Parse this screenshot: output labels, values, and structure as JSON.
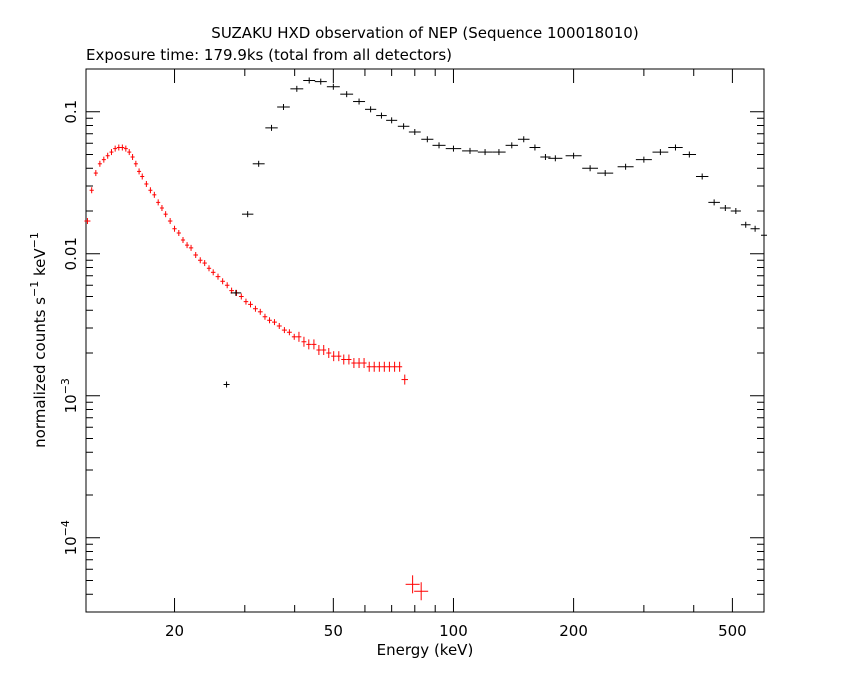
{
  "chart_data": {
    "type": "scatter",
    "title": "SUZAKU HXD observation of NEP (Sequence 100018010)",
    "subtitle": "Exposure time: 179.9ks (total from all detectors)",
    "xlabel": "Energy (keV)",
    "ylabel": "normalized counts s^-1 keV^-1",
    "xscale": "log",
    "yscale": "log",
    "xlim": [
      12,
      600
    ],
    "ylim": [
      3e-05,
      0.2
    ],
    "grid": false,
    "legend": "none",
    "xticks": [
      {
        "value": 20,
        "label": "20"
      },
      {
        "value": 50,
        "label": "50"
      },
      {
        "value": 100,
        "label": "100"
      },
      {
        "value": 200,
        "label": "200"
      },
      {
        "value": 500,
        "label": "500"
      }
    ],
    "yticks": [
      {
        "value": 0.0001,
        "base": "10",
        "exp": "−4"
      },
      {
        "value": 0.001,
        "base": "10",
        "exp": "−3"
      },
      {
        "value": 0.01,
        "label": "0.01"
      },
      {
        "value": 0.1,
        "label": "0.1"
      }
    ],
    "series": [
      {
        "color": "#ff0000",
        "points": [
          [
            12.1,
            0.017
          ],
          [
            12.4,
            0.028
          ],
          [
            12.7,
            0.037
          ],
          [
            13.0,
            0.043
          ],
          [
            13.3,
            0.046
          ],
          [
            13.6,
            0.049
          ],
          [
            13.9,
            0.052
          ],
          [
            14.2,
            0.055
          ],
          [
            14.5,
            0.056
          ],
          [
            14.8,
            0.056
          ],
          [
            15.1,
            0.055
          ],
          [
            15.4,
            0.052
          ],
          [
            15.7,
            0.048
          ],
          [
            16.0,
            0.043
          ],
          [
            16.3,
            0.038
          ],
          [
            16.6,
            0.035
          ],
          [
            17.0,
            0.031
          ],
          [
            17.4,
            0.028
          ],
          [
            17.8,
            0.026
          ],
          [
            18.2,
            0.023
          ],
          [
            18.6,
            0.021
          ],
          [
            19.0,
            0.019
          ],
          [
            19.5,
            0.017
          ],
          [
            20.0,
            0.015
          ],
          [
            20.5,
            0.014
          ],
          [
            21.0,
            0.0125
          ],
          [
            21.5,
            0.0115
          ],
          [
            22.0,
            0.011
          ],
          [
            22.6,
            0.0098
          ],
          [
            23.2,
            0.009
          ],
          [
            23.8,
            0.0086
          ],
          [
            24.4,
            0.0079
          ],
          [
            25.0,
            0.0074
          ],
          [
            25.7,
            0.0069
          ],
          [
            26.4,
            0.0064
          ],
          [
            27.1,
            0.006
          ],
          [
            27.8,
            0.0055
          ],
          [
            28.6,
            0.0053
          ],
          [
            29.4,
            0.005
          ],
          [
            30.2,
            0.0046
          ],
          [
            31.0,
            0.0044
          ],
          [
            31.9,
            0.0041
          ],
          [
            32.8,
            0.0039
          ],
          [
            33.7,
            0.0036
          ],
          [
            34.6,
            0.0034
          ],
          [
            35.6,
            0.0033
          ],
          [
            36.6,
            0.0031
          ],
          [
            37.7,
            0.0029
          ],
          [
            38.8,
            0.0028
          ],
          [
            39.9,
            0.0026
          ],
          [
            41.0,
            0.0026
          ],
          [
            42.2,
            0.0024
          ],
          [
            43.4,
            0.0023
          ],
          [
            44.7,
            0.0023
          ],
          [
            46.0,
            0.0021
          ],
          [
            47.3,
            0.0021
          ],
          [
            48.7,
            0.002
          ],
          [
            50.1,
            0.0019
          ],
          [
            51.6,
            0.0019
          ],
          [
            53.1,
            0.0018
          ],
          [
            54.7,
            0.0018
          ],
          [
            56.3,
            0.0017
          ],
          [
            58.0,
            0.0017
          ],
          [
            59.7,
            0.0017
          ],
          [
            61.5,
            0.0016
          ],
          [
            63.3,
            0.0016
          ],
          [
            65.2,
            0.0016
          ],
          [
            67.1,
            0.0016
          ],
          [
            69.1,
            0.0016
          ],
          [
            71.2,
            0.0016
          ],
          [
            73.3,
            0.0016
          ],
          [
            75.5,
            0.0013
          ],
          [
            79.0,
            4.7e-05
          ],
          [
            83.0,
            4.2e-05
          ]
        ]
      },
      {
        "color": "#000000",
        "points": [
          [
            27.0,
            0.0012
          ],
          [
            28.5,
            0.0053
          ],
          [
            30.5,
            0.019
          ],
          [
            32.5,
            0.043
          ],
          [
            35.0,
            0.077
          ],
          [
            37.5,
            0.108
          ],
          [
            40.5,
            0.145
          ],
          [
            43.5,
            0.166
          ],
          [
            46.5,
            0.163
          ],
          [
            50.0,
            0.15
          ],
          [
            54.0,
            0.133
          ],
          [
            58.0,
            0.118
          ],
          [
            62.0,
            0.104
          ],
          [
            66.0,
            0.094
          ],
          [
            70.0,
            0.087
          ],
          [
            75.0,
            0.079
          ],
          [
            80.0,
            0.072
          ],
          [
            86.0,
            0.064
          ],
          [
            92.0,
            0.058
          ],
          [
            100.0,
            0.055
          ],
          [
            110.0,
            0.053
          ],
          [
            120.0,
            0.052
          ],
          [
            130.0,
            0.052
          ],
          [
            140.0,
            0.058
          ],
          [
            150.0,
            0.064
          ],
          [
            160.0,
            0.056
          ],
          [
            170.0,
            0.048
          ],
          [
            180.0,
            0.047
          ],
          [
            200.0,
            0.049
          ],
          [
            220.0,
            0.04
          ],
          [
            240.0,
            0.037
          ],
          [
            270.0,
            0.041
          ],
          [
            300.0,
            0.046
          ],
          [
            330.0,
            0.052
          ],
          [
            360.0,
            0.056
          ],
          [
            390.0,
            0.05
          ],
          [
            420.0,
            0.035
          ],
          [
            450.0,
            0.023
          ],
          [
            480.0,
            0.021
          ],
          [
            510.0,
            0.02
          ],
          [
            540.0,
            0.016
          ],
          [
            570.0,
            0.015
          ],
          [
            600.0,
            0.0135
          ]
        ]
      }
    ]
  }
}
